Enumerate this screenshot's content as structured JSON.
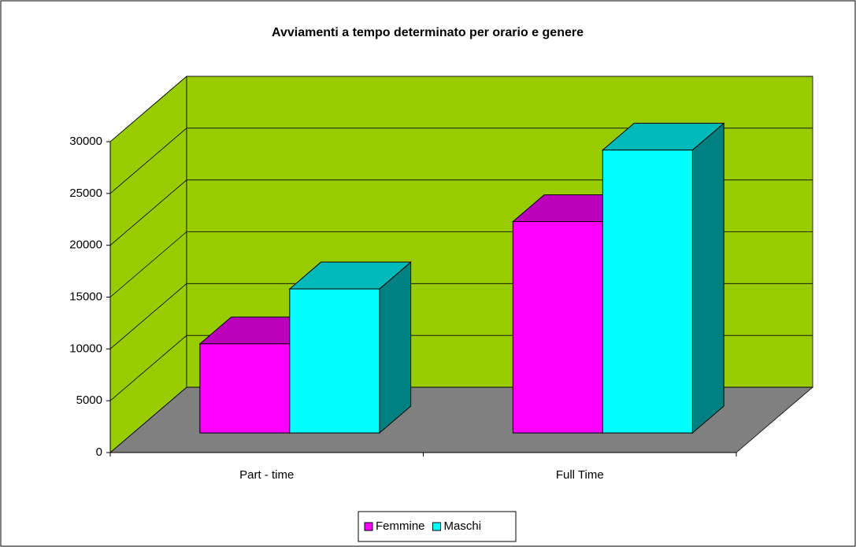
{
  "chart_data": {
    "type": "bar3d",
    "title": "Avviamenti a tempo determinato per orario e genere",
    "categories": [
      "Part - time",
      "Full Time"
    ],
    "series": [
      {
        "name": "Femmine",
        "color": "#ff00ff",
        "values": [
          8600,
          20400
        ]
      },
      {
        "name": "Maschi",
        "color": "#00ffff",
        "values": [
          13900,
          27300
        ]
      }
    ],
    "ylim": [
      0,
      30000
    ],
    "yticks": [
      0,
      5000,
      10000,
      15000,
      20000,
      25000,
      30000
    ],
    "grid": true,
    "legend": "bottom",
    "wall_color": "#99cc00",
    "floor_color": "#808080"
  }
}
